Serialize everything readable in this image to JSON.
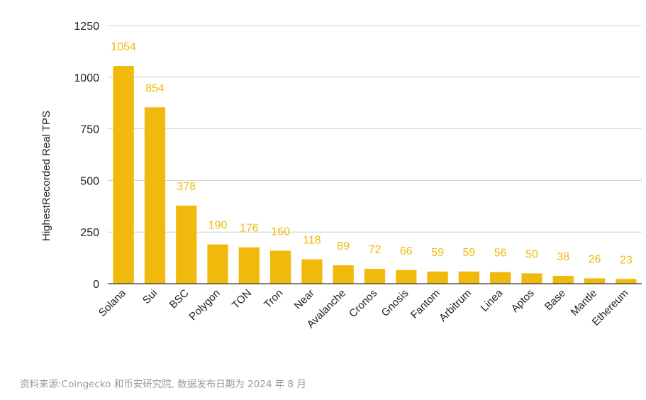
{
  "chart_data": {
    "type": "bar",
    "title": "",
    "xlabel": "",
    "ylabel": "HighestRecorded Real TPS",
    "ylim": [
      0,
      1250
    ],
    "yticks": [
      0,
      250,
      500,
      750,
      1000,
      1250
    ],
    "grid": true,
    "categories": [
      "Solana",
      "Sui",
      "BSC",
      "Polygon",
      "TON",
      "Tron",
      "Near",
      "Avalanche",
      "Cronos",
      "Gnosis",
      "Fantom",
      "Arbitrum",
      "Linea",
      "Aptos",
      "Base",
      "Mantle",
      "Ethereum"
    ],
    "values": [
      1054,
      854,
      378,
      190,
      176,
      160,
      118,
      89,
      72,
      66,
      59,
      59,
      56,
      50,
      38,
      26,
      23
    ],
    "bar_color": "#F0B90B",
    "label_color": "#F0B90B"
  },
  "source_note": "资料来源:Coingecko 和币安研究院, 数据发布日期为 2024 年 8 月"
}
